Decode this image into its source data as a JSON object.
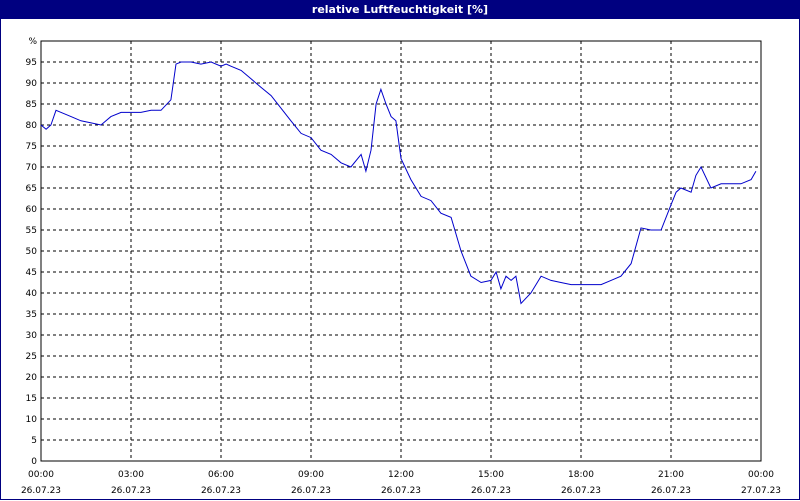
{
  "window": {
    "title": "relative Luftfeuchtigkeit [%]"
  },
  "colors": {
    "title_bar": "#000080",
    "title_text": "#ffffff",
    "series": "#0000cc",
    "grid": "#000000",
    "background": "#ffffff"
  },
  "chart_data": {
    "type": "line",
    "title": "relative Luftfeuchtigkeit [%]",
    "ylabel": "%",
    "xlabel": "",
    "ylim": [
      0,
      100
    ],
    "yticks": [
      "0",
      "5",
      "10",
      "15",
      "20",
      "25",
      "30",
      "35",
      "40",
      "45",
      "50",
      "55",
      "60",
      "65",
      "70",
      "75",
      "80",
      "85",
      "90",
      "95"
    ],
    "x_range_hours": [
      0,
      24
    ],
    "xticks": [
      {
        "time": "00:00",
        "date": "26.07.23"
      },
      {
        "time": "03:00",
        "date": "26.07.23"
      },
      {
        "time": "06:00",
        "date": "26.07.23"
      },
      {
        "time": "09:00",
        "date": "26.07.23"
      },
      {
        "time": "12:00",
        "date": "26.07.23"
      },
      {
        "time": "15:00",
        "date": "26.07.23"
      },
      {
        "time": "18:00",
        "date": "26.07.23"
      },
      {
        "time": "21:00",
        "date": "26.07.23"
      },
      {
        "time": "00:00",
        "date": "27.07.23"
      }
    ],
    "grid": true,
    "series": [
      {
        "x": [
          0.0,
          0.17,
          0.33,
          0.5,
          0.67,
          1.0,
          1.33,
          1.67,
          2.0,
          2.33,
          2.67,
          3.0,
          3.33,
          3.67,
          4.0,
          4.33,
          4.5,
          4.67,
          4.83,
          5.0,
          5.33,
          5.67,
          6.0,
          6.17,
          6.33,
          6.67,
          7.0,
          7.33,
          7.67,
          8.0,
          8.33,
          8.67,
          9.0,
          9.33,
          9.67,
          10.0,
          10.33,
          10.67,
          10.83,
          11.0,
          11.17,
          11.33,
          11.5,
          11.67,
          11.83,
          12.0,
          12.33,
          12.67,
          13.0,
          13.33,
          13.67,
          14.0,
          14.33,
          14.67,
          15.0,
          15.17,
          15.33,
          15.5,
          15.67,
          15.83,
          16.0,
          16.33,
          16.67,
          17.0,
          17.33,
          17.67,
          18.0,
          18.33,
          18.67,
          19.0,
          19.33,
          19.67,
          20.0,
          20.33,
          20.67,
          21.0,
          21.17,
          21.33,
          21.67,
          21.83,
          22.0,
          22.33,
          22.67,
          23.0,
          23.33,
          23.67,
          23.83
        ],
        "y": [
          80,
          79,
          80,
          83.5,
          83,
          82,
          81,
          80.5,
          80,
          82,
          83,
          83,
          83,
          83.5,
          83.5,
          86,
          94.5,
          95,
          95,
          95,
          94.5,
          95,
          94,
          94.5,
          94,
          93,
          91,
          89,
          87,
          84,
          81,
          78,
          77,
          74,
          73,
          71,
          70,
          73,
          69,
          74,
          85,
          88.5,
          85,
          82,
          81,
          72,
          67,
          63,
          62,
          59,
          58,
          50,
          44,
          42.5,
          43,
          45,
          41,
          44,
          43,
          44,
          37.5,
          40,
          44,
          43,
          42.5,
          42,
          42,
          42,
          42,
          43,
          44,
          47,
          55.5,
          55,
          55,
          61,
          64,
          65,
          64,
          68,
          70,
          65,
          66,
          66,
          66,
          67,
          69
        ]
      }
    ]
  }
}
